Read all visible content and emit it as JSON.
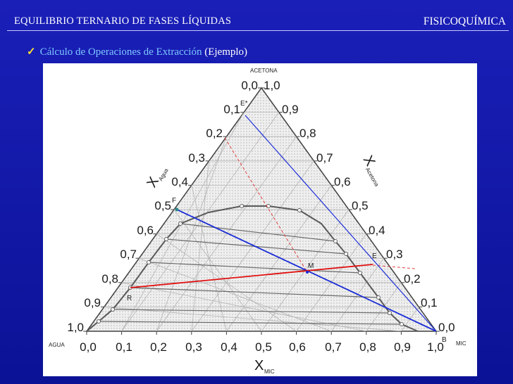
{
  "header": {
    "left_title": "EQUILIBRIO TERNARIO DE FASES LÍQUIDAS",
    "right_title": "FISICOQUÍMICA"
  },
  "bullet": {
    "check_icon": "check-icon",
    "highlight": "Cálculo de Operaciones de Extracción",
    "rest": " (Ejemplo)"
  },
  "diagram": {
    "vertex_top": "ACETONA",
    "vertex_left": "AGUA",
    "vertex_right": "MIC",
    "bottom_ticks": [
      "0,0",
      "0,1",
      "0,2",
      "0,3",
      "0,4",
      "0,5",
      "0,6",
      "0,7",
      "0,8",
      "0,9",
      "1,0"
    ],
    "left_ticks": [
      "1,0",
      "0,9",
      "0,8",
      "0,7",
      "0,6",
      "0,5",
      "0,4",
      "0,3",
      "0,2",
      "0,1",
      "0,0"
    ],
    "right_ticks": [
      "0,0",
      "0,1",
      "0,2",
      "0,3",
      "0,4",
      "0,5",
      "0,6",
      "0,7",
      "0,8",
      "0,9",
      "1,0"
    ],
    "x_axis_main": "X",
    "x_axis_sub": "MIC",
    "left_axis_main": "X",
    "left_axis_sub": "Agua",
    "right_axis_main": "X",
    "right_axis_sub": "Acetona",
    "point_labels": {
      "E_star": "E*",
      "F": "F",
      "E": "E",
      "M": "M",
      "R": "R",
      "B": "B"
    }
  }
}
